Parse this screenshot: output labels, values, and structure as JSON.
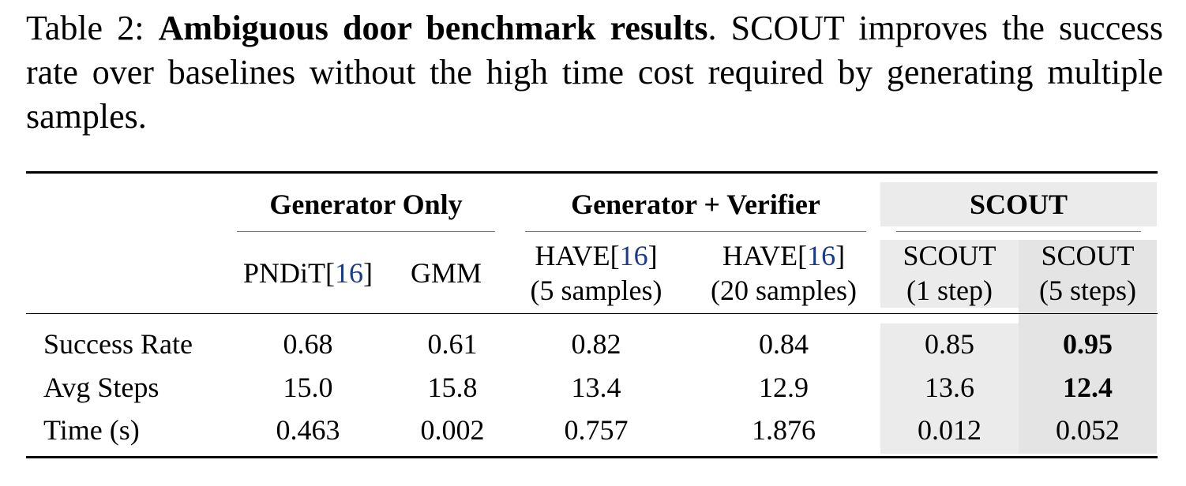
{
  "caption": {
    "label": "Table 2:",
    "title": "Ambiguous door benchmark results",
    "period": ".",
    "text": "SCOUT improves the success rate over baselines without the high time cost required by generating multiple samples."
  },
  "table": {
    "groups": {
      "generator_only": "Generator Only",
      "generator_verifier": "Generator + Verifier",
      "scout": "SCOUT"
    },
    "columns": [
      {
        "line1": "PNDiT",
        "cite": "16",
        "close": "]",
        "open": "[",
        "line2": ""
      },
      {
        "line1": "GMM",
        "line2": ""
      },
      {
        "line1": "HAVE",
        "cite": "16",
        "open": "[",
        "close": "]",
        "line2": "(5 samples)"
      },
      {
        "line1": "HAVE",
        "cite": "16",
        "open": "[",
        "close": "]",
        "line2": "(20 samples)"
      },
      {
        "line1": "SCOUT",
        "line2": "(1 step)"
      },
      {
        "line1": "SCOUT",
        "line2": "(5 steps)"
      }
    ],
    "rows": [
      {
        "label": "Success Rate",
        "values": [
          "0.68",
          "0.61",
          "0.82",
          "0.84",
          "0.85",
          "0.95"
        ]
      },
      {
        "label": "Avg Steps",
        "values": [
          "15.0",
          "15.8",
          "13.4",
          "12.9",
          "13.6",
          "12.4"
        ]
      },
      {
        "label": "Time (s)",
        "values": [
          "0.463",
          "0.002",
          "0.757",
          "1.876",
          "0.012",
          "0.052"
        ]
      }
    ]
  }
}
